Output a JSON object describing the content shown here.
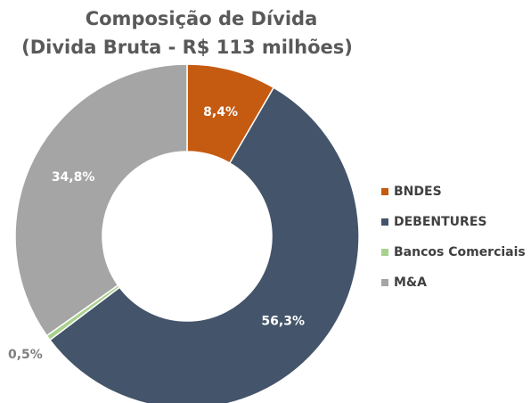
{
  "chart_data": {
    "type": "donut",
    "title": "Composição de Dívida",
    "subtitle": "(Divida Bruta - R$ 113 milhões)",
    "categories": [
      "BNDES",
      "DEBENTURES",
      "Bancos Comerciais",
      "M&A"
    ],
    "values": [
      8.4,
      56.3,
      0.5,
      34.8
    ],
    "value_labels": [
      "8,4%",
      "56,3%",
      "0,5%",
      "34,8%"
    ],
    "colors": [
      "#c55a11",
      "#44546a",
      "#a9d18e",
      "#a5a5a5"
    ],
    "legend": "right"
  }
}
